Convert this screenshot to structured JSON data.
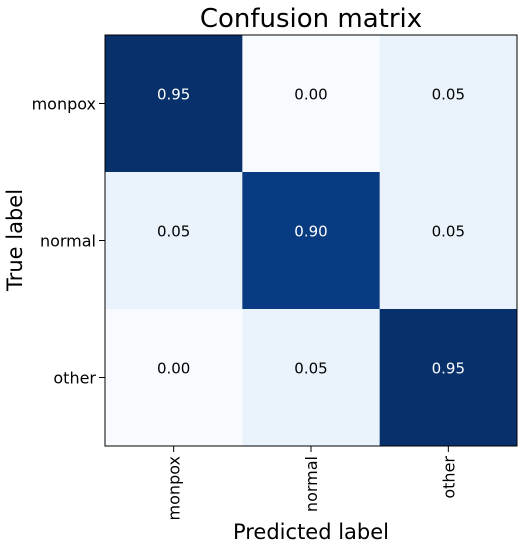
{
  "chart_data": {
    "type": "heatmap",
    "title": "Confusion matrix",
    "xlabel": "Predicted label",
    "ylabel": "True label",
    "x_categories": [
      "monpox",
      "normal",
      "other"
    ],
    "y_categories": [
      "monpox",
      "normal",
      "other"
    ],
    "values": [
      [
        0.95,
        0.0,
        0.05
      ],
      [
        0.05,
        0.9,
        0.05
      ],
      [
        0.0,
        0.05,
        0.95
      ]
    ],
    "value_labels": [
      [
        "0.95",
        "0.00",
        "0.05"
      ],
      [
        "0.05",
        "0.90",
        "0.05"
      ],
      [
        "0.00",
        "0.05",
        "0.95"
      ]
    ],
    "colormap": "Blues",
    "colors": {
      "low": "#f7fbff",
      "lowmid": "#eaf3fb",
      "high": "#08306b",
      "text_dark": "#000000",
      "text_light": "#ffffff"
    },
    "grid": false
  }
}
